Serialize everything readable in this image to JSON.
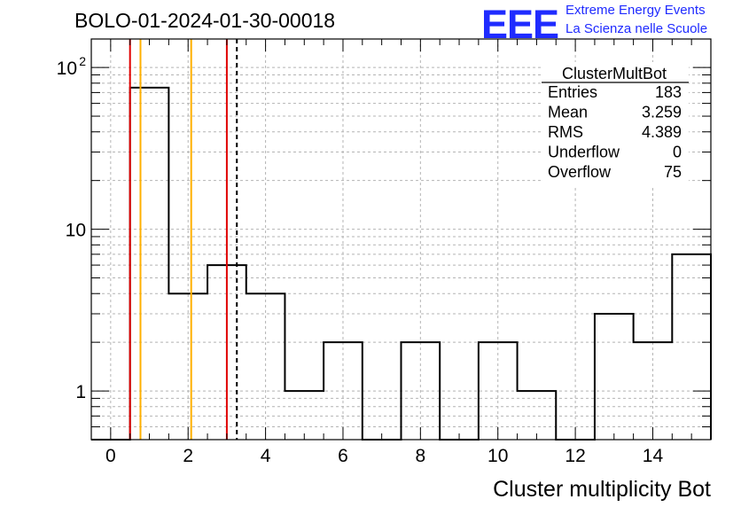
{
  "title": "BOLO-01-2024-01-30-00018",
  "logo": {
    "mark": "EEE",
    "line1": "Extreme Energy Events",
    "line2": "La Scienza nelle Scuole"
  },
  "colors": {
    "histogram": "#000000",
    "red_line": "#e00000",
    "orange_line": "#ffb000",
    "grid": "#b4b4b4",
    "logo": "#1f2bff"
  },
  "chart_data": {
    "type": "bar",
    "style": "step-histogram",
    "xlabel": "Cluster multiplicity Bot",
    "ylabel": "",
    "yscale": "log",
    "xlim": [
      -0.5,
      15.5
    ],
    "ylim": [
      0.5,
      150
    ],
    "grid": true,
    "x_ticks": [
      "0",
      "2",
      "4",
      "6",
      "8",
      "10",
      "12",
      "14"
    ],
    "y_ticks": [
      {
        "value": 1,
        "label": "1",
        "sup": ""
      },
      {
        "value": 10,
        "label": "10",
        "sup": ""
      },
      {
        "value": 100,
        "label": "10",
        "sup": "2"
      }
    ],
    "bin_edges": [
      -0.5,
      0.5,
      1.5,
      2.5,
      3.5,
      4.5,
      5.5,
      6.5,
      7.5,
      8.5,
      9.5,
      10.5,
      11.5,
      12.5,
      13.5,
      14.5,
      15.5
    ],
    "values": [
      0,
      75,
      4,
      6,
      4,
      1,
      2,
      0,
      2,
      0,
      2,
      1,
      0,
      3,
      2,
      7
    ],
    "vertical_lines": [
      {
        "x": 0.5,
        "color": "red",
        "style": "solid"
      },
      {
        "x": 0.77,
        "color": "orange",
        "style": "solid"
      },
      {
        "x": 2.08,
        "color": "orange",
        "style": "solid"
      },
      {
        "x": 3.0,
        "color": "red",
        "style": "solid"
      },
      {
        "x": 3.259,
        "color": "black",
        "style": "dashed"
      }
    ],
    "stats_box": {
      "name": "ClusterMultBot",
      "rows": [
        {
          "label": "Entries",
          "value": "183"
        },
        {
          "label": "Mean",
          "value": "3.259"
        },
        {
          "label": "RMS",
          "value": "4.389"
        },
        {
          "label": "Underflow",
          "value": "0"
        },
        {
          "label": "Overflow",
          "value": "75"
        }
      ]
    }
  }
}
